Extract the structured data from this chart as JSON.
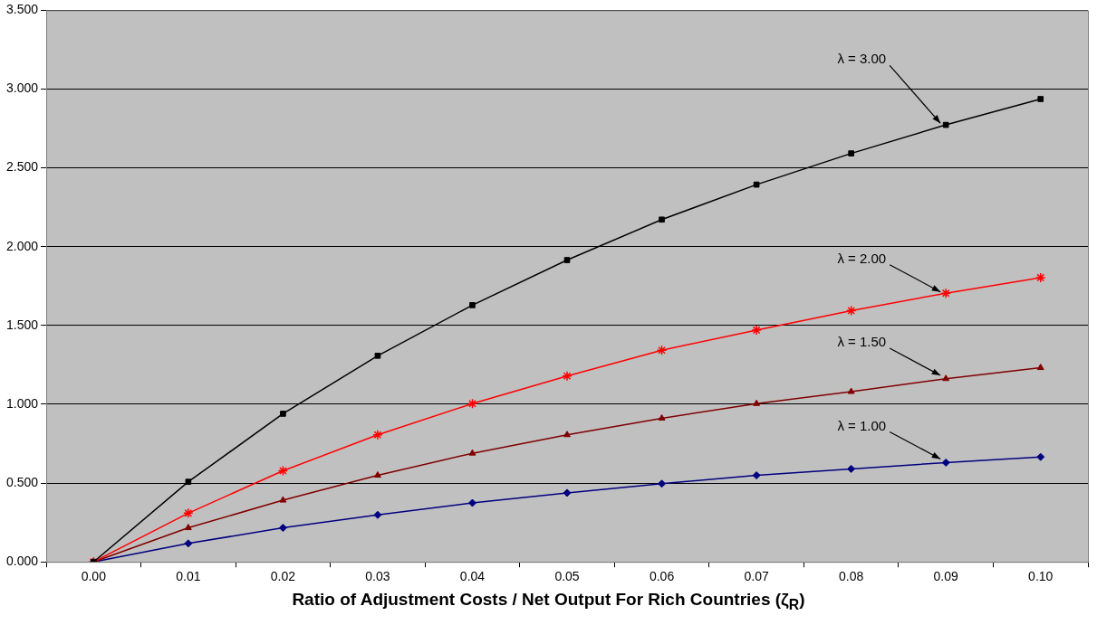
{
  "chart_data": {
    "type": "line",
    "xlabel": "Ratio of Adjustment Costs / Net Output For Rich Countries (ζ$_{R}$)",
    "categories": [
      "0.00",
      "0.01",
      "0.02",
      "0.03",
      "0.04",
      "0.05",
      "0.06",
      "0.07",
      "0.08",
      "0.09",
      "0.10"
    ],
    "series": [
      {
        "color": "#000000",
        "marker": "square",
        "values": [
          0,
          0.508,
          0.94,
          1.308,
          1.629,
          1.915,
          2.172,
          2.394,
          2.592,
          2.773,
          2.937
        ]
      },
      {
        "color": "#ff0000",
        "marker": "cross",
        "values": [
          0,
          0.309,
          0.578,
          0.806,
          1.004,
          1.179,
          1.343,
          1.471,
          1.594,
          1.705,
          1.804
        ]
      },
      {
        "color": "#800000",
        "marker": "triangle",
        "values": [
          0,
          0.216,
          0.391,
          0.549,
          0.689,
          0.806,
          0.911,
          1.004,
          1.08,
          1.162,
          1.232
        ]
      },
      {
        "color": "#000080",
        "marker": "diamond",
        "values": [
          0,
          0.117,
          0.216,
          0.298,
          0.374,
          0.438,
          0.496,
          0.549,
          0.59,
          0.63,
          0.666
        ]
      }
    ],
    "ylim": [
      0,
      3.5
    ],
    "yticks": [
      {
        "value": 0,
        "label": "0.000"
      },
      {
        "value": 0.5,
        "label": "0.500"
      },
      {
        "value": 1,
        "label": "1.000"
      },
      {
        "value": 1.5,
        "label": "1.500"
      },
      {
        "value": 2,
        "label": "2.000"
      },
      {
        "value": 2.5,
        "label": "2.500"
      },
      {
        "value": 3,
        "label": "3.000"
      },
      {
        "value": 3.5,
        "label": "3.500"
      }
    ],
    "grid": "y",
    "legend": false,
    "annotations": [
      {
        "text": "λ = 3.00",
        "x": "0.09",
        "y": 2.76
      },
      {
        "text": "λ = 2.00",
        "x": "0.09",
        "y": 1.69
      },
      {
        "text": "λ = 1.50",
        "x": "0.09",
        "y": 1.16
      },
      {
        "text": "λ = 1.00",
        "x": "0.09",
        "y": 0.63
      }
    ]
  }
}
